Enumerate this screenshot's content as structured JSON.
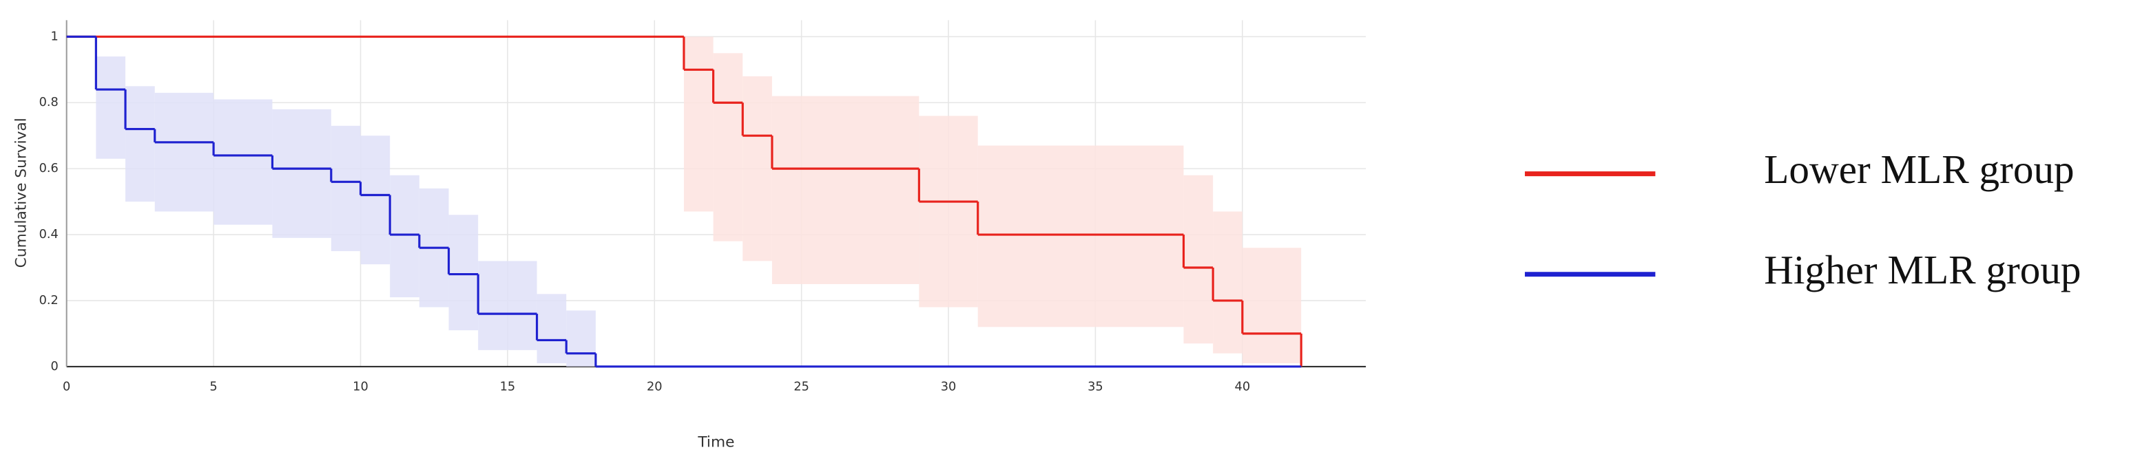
{
  "chart_data": {
    "type": "step",
    "xlabel": "Time",
    "ylabel": "Cumulative Survival",
    "xlim": [
      0,
      44.2
    ],
    "ylim": [
      0,
      1.05
    ],
    "xticks": [
      0,
      5,
      10,
      15,
      20,
      25,
      30,
      35,
      40
    ],
    "yticks": [
      0,
      0.2,
      0.4,
      0.6,
      0.8,
      1
    ],
    "grid": true,
    "legend": "right",
    "series": [
      {
        "name": "Lower MLR group",
        "color": "#e8231d",
        "band_color": "#fde3df",
        "x": [
          0,
          21,
          22,
          23,
          24,
          29,
          31,
          38,
          39,
          40,
          42
        ],
        "values": [
          1,
          0.9,
          0.8,
          0.7,
          0.6,
          0.5,
          0.4,
          0.3,
          0.2,
          0.1,
          0
        ],
        "ci_upper": [
          null,
          1,
          0.95,
          0.88,
          0.82,
          0.76,
          0.67,
          0.58,
          0.47,
          0.36,
          null
        ],
        "ci_lower": [
          null,
          0.47,
          0.38,
          0.32,
          0.25,
          0.18,
          0.12,
          0.07,
          0.04,
          0.01,
          null
        ]
      },
      {
        "name": "Higher MLR group",
        "color": "#1f22d0",
        "band_color": "#dfe1f8",
        "x": [
          0,
          1,
          2,
          3,
          5,
          7,
          9,
          10,
          11,
          12,
          13,
          14,
          16,
          17,
          18,
          42
        ],
        "values": [
          1,
          0.84,
          0.72,
          0.68,
          0.64,
          0.6,
          0.56,
          0.52,
          0.4,
          0.36,
          0.28,
          0.16,
          0.08,
          0.04,
          0,
          0
        ],
        "ci_upper": [
          null,
          0.94,
          0.85,
          0.83,
          0.81,
          0.78,
          0.73,
          0.7,
          0.58,
          0.54,
          0.46,
          0.32,
          0.22,
          0.17,
          null,
          null
        ],
        "ci_lower": [
          null,
          0.63,
          0.5,
          0.47,
          0.43,
          0.39,
          0.35,
          0.31,
          0.21,
          0.18,
          0.11,
          0.05,
          0.01,
          0,
          null,
          null
        ]
      }
    ]
  }
}
